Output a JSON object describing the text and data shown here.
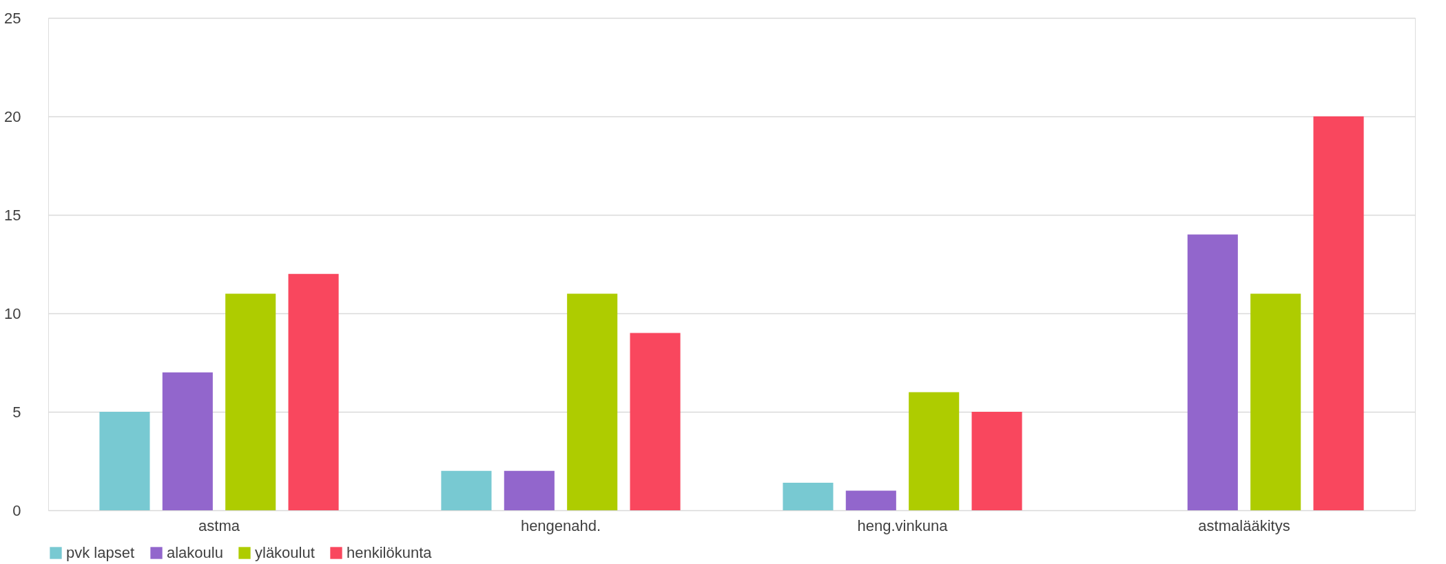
{
  "chart_data": {
    "type": "bar",
    "categories": [
      "astma",
      "hengenahd.",
      "heng.vinkuna",
      "astmalääkitys"
    ],
    "series": [
      {
        "name": "pvk lapset",
        "color": "#78c9d2",
        "values": [
          5,
          2,
          1.4,
          null
        ]
      },
      {
        "name": "alakoulu",
        "color": "#9266cc",
        "values": [
          7,
          2,
          1,
          14
        ]
      },
      {
        "name": "yläkoulut",
        "color": "#aecc00",
        "values": [
          11,
          11,
          6,
          11
        ]
      },
      {
        "name": "henkilökunta",
        "color": "#f9475e",
        "values": [
          12,
          9,
          5,
          20
        ]
      }
    ],
    "ylim": [
      0,
      25
    ],
    "yticks": [
      0,
      5,
      10,
      15,
      20,
      25
    ],
    "grid": "y",
    "legend": "bottom"
  }
}
